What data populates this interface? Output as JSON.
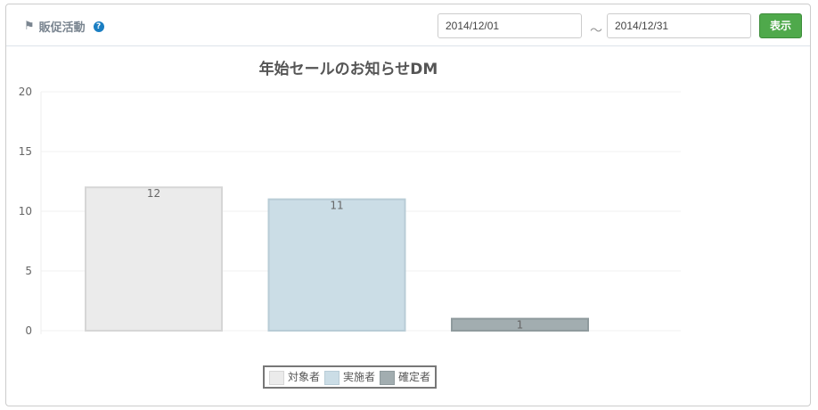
{
  "header": {
    "title": "販促活動",
    "help_icon": "question-circle-icon",
    "flag_icon": "flag-icon",
    "date_from": "2014/12/01",
    "separator": "～",
    "date_to": "2014/12/31",
    "show_button": "表示"
  },
  "colors": {
    "button": "#4fa94b",
    "help": "#1a7ec2"
  },
  "chart_data": {
    "type": "bar",
    "title": "年始セールのお知らせDM",
    "xlabel": "",
    "ylabel": "",
    "ylim": [
      0,
      20
    ],
    "yticks": [
      0,
      5,
      10,
      15,
      20
    ],
    "grid": true,
    "legend": "bottom",
    "series": [
      {
        "name": "対象者",
        "value": 12,
        "color": "#ebebeb",
        "border": "#d6d6d6"
      },
      {
        "name": "実施者",
        "value": 11,
        "color": "#cbdde6",
        "border": "#b8ccd6"
      },
      {
        "name": "確定者",
        "value": 1,
        "color": "#a2adb0",
        "border": "#8f9a9d"
      }
    ]
  }
}
